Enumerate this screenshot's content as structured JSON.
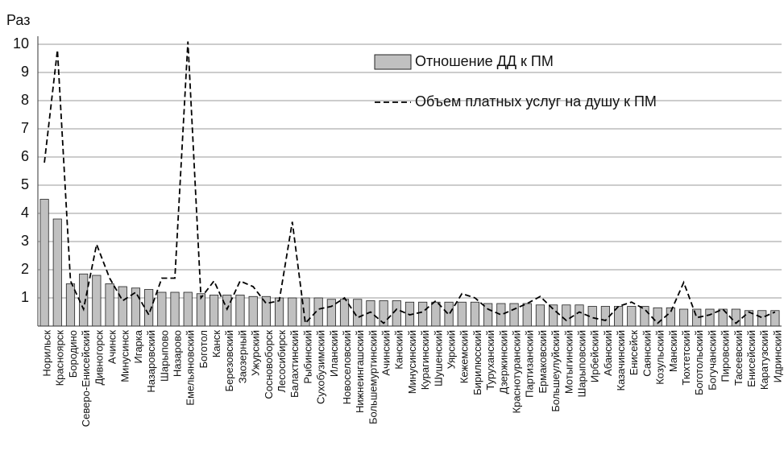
{
  "chart_data": {
    "type": "bar",
    "y_label": "Раз",
    "categories": [
      "Норильск",
      "Красноярск",
      "Бородино",
      "Северо-Енисейский",
      "Дивногорск",
      "Ачинск",
      "Минусинск",
      "Игарка",
      "Назаровский",
      "Шарыпово",
      "Назарово",
      "Емельяновский",
      "Боготол",
      "Канск",
      "Березовский",
      "Заозерный",
      "Ужурский",
      "Сосновоборск",
      "Лесосибирск",
      "Балахтинский",
      "Рыбинский",
      "Сухобузимский",
      "Иланский",
      "Новоселовский",
      "Нижнеингашский",
      "Большемуртинский",
      "Ачинский",
      "Канский",
      "Минусинский",
      "Курагинский",
      "Шушенский",
      "Уярский",
      "Кежемский",
      "Бирилюсский",
      "Туруханский",
      "Дзержинский",
      "Краснотуранский",
      "Партизанский",
      "Ермаковский",
      "Большеулуйский",
      "Мотыгинский",
      "Шарыповский",
      "Ирбейский",
      "Абанский",
      "Казачинский",
      "Енисейск",
      "Саянский",
      "Козульский",
      "Манский",
      "Тюхтетский",
      "Боготольский",
      "Богучанский",
      "Пировский",
      "Тасеевский",
      "Енисейский",
      "Каратузский",
      "Идринский"
    ],
    "series": [
      {
        "name": "Отношение ДД к ПМ",
        "type": "bar",
        "color": "#c0c0c0",
        "values": [
          4.5,
          3.8,
          1.5,
          1.85,
          1.8,
          1.5,
          1.4,
          1.35,
          1.3,
          1.2,
          1.2,
          1.2,
          1.15,
          1.1,
          1.1,
          1.1,
          1.05,
          1.05,
          1.0,
          1.0,
          1.0,
          1.0,
          0.95,
          0.95,
          0.95,
          0.9,
          0.9,
          0.9,
          0.85,
          0.85,
          0.85,
          0.85,
          0.85,
          0.85,
          0.8,
          0.8,
          0.8,
          0.8,
          0.75,
          0.75,
          0.75,
          0.75,
          0.7,
          0.7,
          0.7,
          0.7,
          0.7,
          0.65,
          0.65,
          0.6,
          0.6,
          0.6,
          0.6,
          0.6,
          0.55,
          0.55,
          0.55
        ]
      },
      {
        "name": "Объем  платных услуг на душу к ПМ",
        "type": "line",
        "color": "#000000",
        "values": [
          5.8,
          9.8,
          1.6,
          0.6,
          2.9,
          1.7,
          0.9,
          1.2,
          0.4,
          1.7,
          1.7,
          10.1,
          1.0,
          1.6,
          0.6,
          1.6,
          1.4,
          0.8,
          0.9,
          3.7,
          0.1,
          0.6,
          0.7,
          1.0,
          0.3,
          0.5,
          0.1,
          0.6,
          0.4,
          0.5,
          0.9,
          0.4,
          1.15,
          1.0,
          0.6,
          0.4,
          0.6,
          0.8,
          1.05,
          0.6,
          0.2,
          0.5,
          0.3,
          0.2,
          0.7,
          0.85,
          0.6,
          0.1,
          0.5,
          1.55,
          0.3,
          0.4,
          0.6,
          0.1,
          0.5,
          0.3,
          0.5
        ]
      }
    ],
    "ylim": [
      0,
      10
    ],
    "yticks": [
      1,
      2,
      3,
      4,
      5,
      6,
      7,
      8,
      9,
      10
    ],
    "grid": true
  }
}
